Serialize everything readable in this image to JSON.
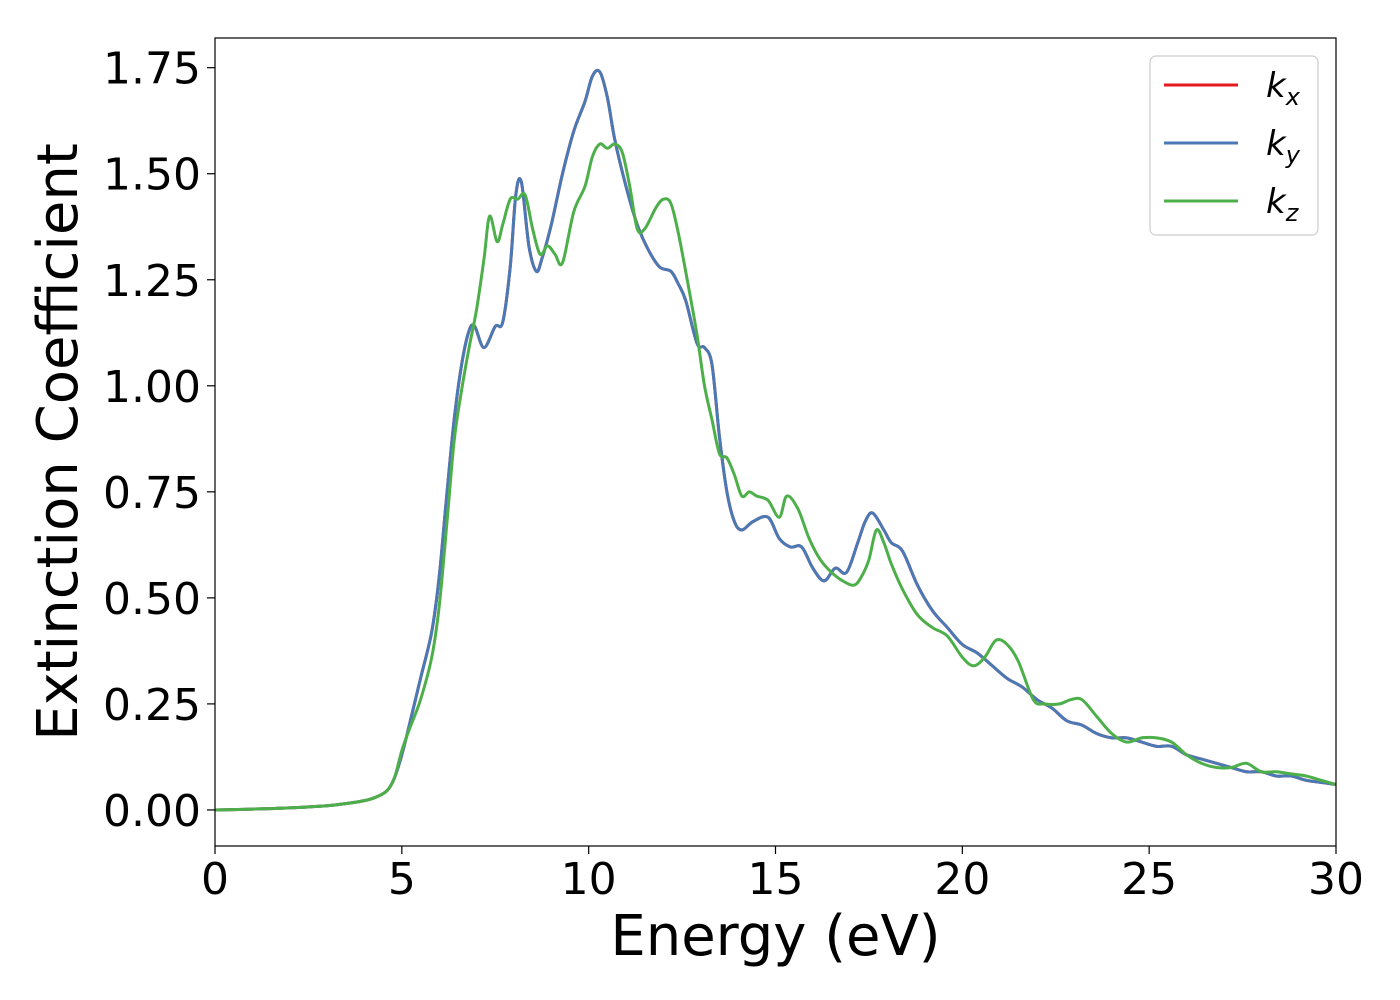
{
  "chart_data": {
    "type": "line",
    "xlabel": "Energy (eV)",
    "ylabel": "Extinction Coefficient",
    "xlim": [
      0,
      30
    ],
    "ylim": [
      -0.085,
      1.82
    ],
    "xticks": [
      0,
      5,
      10,
      15,
      20,
      25,
      30
    ],
    "xtick_labels": [
      "0",
      "5",
      "10",
      "15",
      "20",
      "25",
      "30"
    ],
    "yticks": [
      0,
      0.25,
      0.5,
      0.75,
      1.0,
      1.25,
      1.5,
      1.75
    ],
    "ytick_labels": [
      "0.00",
      "0.25",
      "0.50",
      "0.75",
      "1.00",
      "1.25",
      "1.50",
      "1.75"
    ],
    "grid": false,
    "legend_position": "top-right",
    "series": [
      {
        "name": "k_x",
        "legend_base": "k",
        "legend_sub": "x",
        "color": "#e41a1c",
        "x": [
          0,
          1,
          2,
          3,
          3.5,
          4,
          4.3,
          4.6,
          4.8,
          5.0,
          5.2,
          5.5,
          5.8,
          6.0,
          6.2,
          6.4,
          6.6,
          6.8,
          6.95,
          7.2,
          7.5,
          7.7,
          7.9,
          8.05,
          8.2,
          8.4,
          8.6,
          8.75,
          9.0,
          9.3,
          9.6,
          9.9,
          10.1,
          10.3,
          10.5,
          10.7,
          11.0,
          11.3,
          11.6,
          11.9,
          12.2,
          12.4,
          12.6,
          12.9,
          13.1,
          13.3,
          13.5,
          13.7,
          13.9,
          14.1,
          14.4,
          14.8,
          15.1,
          15.4,
          15.7,
          16.0,
          16.3,
          16.6,
          16.9,
          17.2,
          17.4,
          17.6,
          17.9,
          18.1,
          18.4,
          18.8,
          19.2,
          19.6,
          20.0,
          20.4,
          20.8,
          21.2,
          21.6,
          22.0,
          22.4,
          22.8,
          23.2,
          23.6,
          24.0,
          24.4,
          24.8,
          25.2,
          25.6,
          26.0,
          26.4,
          26.8,
          27.2,
          27.6,
          28.0,
          28.4,
          28.8,
          29.2,
          29.6,
          30.0
        ],
        "y": [
          0.0,
          0.002,
          0.005,
          0.01,
          0.015,
          0.022,
          0.03,
          0.045,
          0.075,
          0.13,
          0.2,
          0.31,
          0.42,
          0.55,
          0.74,
          0.92,
          1.05,
          1.13,
          1.14,
          1.09,
          1.14,
          1.15,
          1.28,
          1.45,
          1.48,
          1.33,
          1.27,
          1.3,
          1.38,
          1.5,
          1.6,
          1.67,
          1.73,
          1.74,
          1.68,
          1.58,
          1.47,
          1.38,
          1.32,
          1.28,
          1.27,
          1.24,
          1.2,
          1.1,
          1.09,
          1.05,
          0.88,
          0.75,
          0.68,
          0.66,
          0.68,
          0.69,
          0.64,
          0.62,
          0.62,
          0.57,
          0.54,
          0.57,
          0.56,
          0.63,
          0.68,
          0.7,
          0.66,
          0.63,
          0.61,
          0.53,
          0.47,
          0.43,
          0.39,
          0.37,
          0.34,
          0.31,
          0.29,
          0.26,
          0.24,
          0.21,
          0.2,
          0.18,
          0.17,
          0.17,
          0.16,
          0.15,
          0.15,
          0.13,
          0.12,
          0.11,
          0.1,
          0.09,
          0.09,
          0.08,
          0.08,
          0.07,
          0.065,
          0.06
        ]
      },
      {
        "name": "k_y",
        "legend_base": "k",
        "legend_sub": "y",
        "color": "#4a7ab5",
        "x": [
          0,
          1,
          2,
          3,
          3.5,
          4,
          4.3,
          4.6,
          4.8,
          5.0,
          5.2,
          5.5,
          5.8,
          6.0,
          6.2,
          6.4,
          6.6,
          6.8,
          6.95,
          7.2,
          7.5,
          7.7,
          7.9,
          8.05,
          8.2,
          8.4,
          8.6,
          8.75,
          9.0,
          9.3,
          9.6,
          9.9,
          10.1,
          10.3,
          10.5,
          10.7,
          11.0,
          11.3,
          11.6,
          11.9,
          12.2,
          12.4,
          12.6,
          12.9,
          13.1,
          13.3,
          13.5,
          13.7,
          13.9,
          14.1,
          14.4,
          14.8,
          15.1,
          15.4,
          15.7,
          16.0,
          16.3,
          16.6,
          16.9,
          17.2,
          17.4,
          17.6,
          17.9,
          18.1,
          18.4,
          18.8,
          19.2,
          19.6,
          20.0,
          20.4,
          20.8,
          21.2,
          21.6,
          22.0,
          22.4,
          22.8,
          23.2,
          23.6,
          24.0,
          24.4,
          24.8,
          25.2,
          25.6,
          26.0,
          26.4,
          26.8,
          27.2,
          27.6,
          28.0,
          28.4,
          28.8,
          29.2,
          29.6,
          30.0
        ],
        "y": [
          0.0,
          0.002,
          0.005,
          0.01,
          0.015,
          0.022,
          0.03,
          0.045,
          0.075,
          0.13,
          0.2,
          0.31,
          0.42,
          0.55,
          0.74,
          0.92,
          1.05,
          1.13,
          1.14,
          1.09,
          1.14,
          1.15,
          1.28,
          1.45,
          1.48,
          1.33,
          1.27,
          1.3,
          1.38,
          1.5,
          1.6,
          1.67,
          1.73,
          1.74,
          1.68,
          1.58,
          1.47,
          1.38,
          1.32,
          1.28,
          1.27,
          1.24,
          1.2,
          1.1,
          1.09,
          1.05,
          0.88,
          0.75,
          0.68,
          0.66,
          0.68,
          0.69,
          0.64,
          0.62,
          0.62,
          0.57,
          0.54,
          0.57,
          0.56,
          0.63,
          0.68,
          0.7,
          0.66,
          0.63,
          0.61,
          0.53,
          0.47,
          0.43,
          0.39,
          0.37,
          0.34,
          0.31,
          0.29,
          0.26,
          0.24,
          0.21,
          0.2,
          0.18,
          0.17,
          0.17,
          0.16,
          0.15,
          0.15,
          0.13,
          0.12,
          0.11,
          0.1,
          0.09,
          0.09,
          0.08,
          0.08,
          0.07,
          0.065,
          0.06
        ]
      },
      {
        "name": "k_z",
        "legend_base": "k",
        "legend_sub": "z",
        "color": "#4daf4a",
        "x": [
          0,
          1,
          2,
          3,
          3.5,
          4,
          4.3,
          4.6,
          4.8,
          5.0,
          5.2,
          5.5,
          5.8,
          6.0,
          6.2,
          6.4,
          6.6,
          6.8,
          7.0,
          7.2,
          7.35,
          7.55,
          7.7,
          7.9,
          8.1,
          8.3,
          8.5,
          8.7,
          8.9,
          9.1,
          9.3,
          9.6,
          9.9,
          10.1,
          10.3,
          10.5,
          10.7,
          10.9,
          11.1,
          11.3,
          11.5,
          11.8,
          12.0,
          12.2,
          12.4,
          12.7,
          12.9,
          13.1,
          13.3,
          13.5,
          13.7,
          13.9,
          14.1,
          14.3,
          14.5,
          14.8,
          15.1,
          15.3,
          15.6,
          15.9,
          16.2,
          16.5,
          16.8,
          17.1,
          17.3,
          17.5,
          17.7,
          17.9,
          18.1,
          18.4,
          18.8,
          19.2,
          19.6,
          20.0,
          20.3,
          20.6,
          20.9,
          21.2,
          21.5,
          21.9,
          22.2,
          22.6,
          22.9,
          23.2,
          23.6,
          24.0,
          24.4,
          24.8,
          25.2,
          25.6,
          26.0,
          26.4,
          26.8,
          27.2,
          27.6,
          28.0,
          28.4,
          28.8,
          29.2,
          29.6,
          30.0
        ],
        "y": [
          0.0,
          0.002,
          0.005,
          0.01,
          0.015,
          0.022,
          0.03,
          0.045,
          0.075,
          0.14,
          0.19,
          0.26,
          0.36,
          0.48,
          0.67,
          0.87,
          0.99,
          1.09,
          1.18,
          1.3,
          1.4,
          1.34,
          1.38,
          1.44,
          1.44,
          1.45,
          1.37,
          1.31,
          1.33,
          1.31,
          1.29,
          1.41,
          1.47,
          1.54,
          1.57,
          1.56,
          1.57,
          1.55,
          1.47,
          1.37,
          1.37,
          1.42,
          1.44,
          1.43,
          1.36,
          1.22,
          1.12,
          1.0,
          0.92,
          0.84,
          0.83,
          0.79,
          0.74,
          0.75,
          0.74,
          0.73,
          0.69,
          0.74,
          0.71,
          0.64,
          0.59,
          0.56,
          0.54,
          0.53,
          0.55,
          0.59,
          0.66,
          0.63,
          0.58,
          0.52,
          0.46,
          0.43,
          0.41,
          0.36,
          0.34,
          0.36,
          0.4,
          0.39,
          0.35,
          0.26,
          0.25,
          0.25,
          0.26,
          0.26,
          0.22,
          0.18,
          0.16,
          0.17,
          0.17,
          0.16,
          0.13,
          0.11,
          0.1,
          0.1,
          0.11,
          0.09,
          0.09,
          0.085,
          0.08,
          0.07,
          0.06
        ]
      }
    ]
  }
}
